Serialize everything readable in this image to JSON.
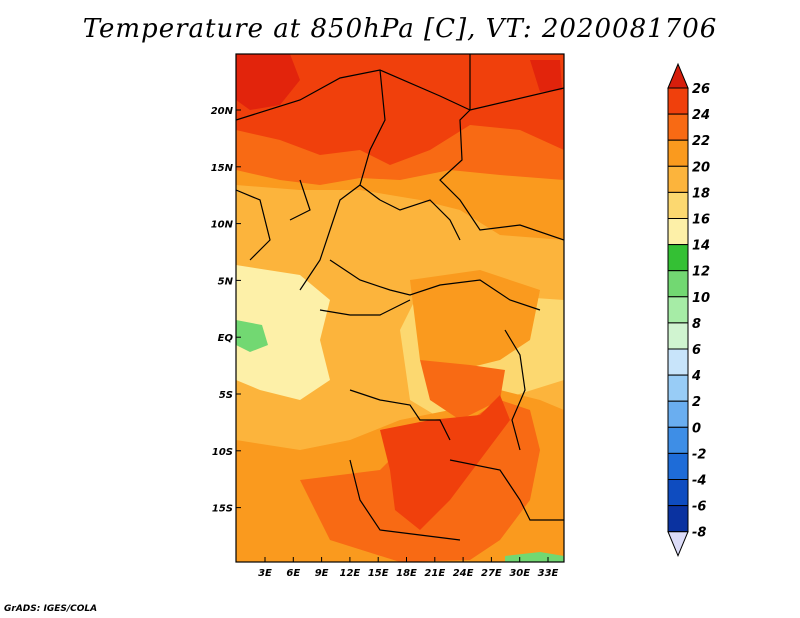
{
  "title": "Temperature at 850hPa [C], VT: 2020081706",
  "credit": "GrADS: IGES/COLA",
  "map": {
    "x_ticks": [
      "3E",
      "6E",
      "9E",
      "12E",
      "15E",
      "18E",
      "21E",
      "24E",
      "27E",
      "30E",
      "33E"
    ],
    "y_ticks": [
      "20N",
      "15N",
      "10N",
      "5N",
      "EQ",
      "5S",
      "10S",
      "15S"
    ]
  },
  "colorbar": {
    "labels": [
      "26",
      "24",
      "22",
      "20",
      "18",
      "16",
      "14",
      "12",
      "10",
      "8",
      "6",
      "4",
      "2",
      "0",
      "-2",
      "-4",
      "-6",
      "-8"
    ],
    "colors": [
      "#e2240c",
      "#f0400c",
      "#f86a14",
      "#fa9a1e",
      "#fcb43c",
      "#fcd870",
      "#fdf0a8",
      "#34c034",
      "#72d872",
      "#a6eca6",
      "#d0f4d0",
      "#c8e4fa",
      "#98ccf6",
      "#6aaef0",
      "#3e8ee6",
      "#1e6cd8",
      "#0e4cc0",
      "#0a32a0",
      "#06146a"
    ],
    "top_triangle_color": "#d61e0c",
    "bottom_triangle_color": "#dcdcf8"
  }
}
